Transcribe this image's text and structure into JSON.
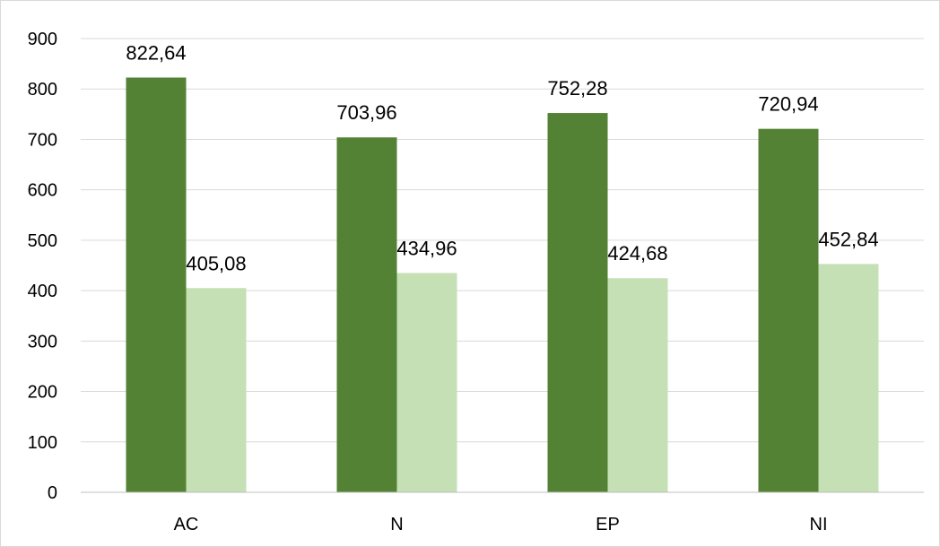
{
  "chart_data": {
    "type": "bar",
    "categories": [
      "AC",
      "N",
      "EP",
      "NI"
    ],
    "series": [
      {
        "values": [
          822.64,
          703.96,
          752.28,
          720.94
        ],
        "labels": [
          "822,64",
          "703,96",
          "752,28",
          "720,94"
        ],
        "color": "#548235"
      },
      {
        "values": [
          405.08,
          434.96,
          424.68,
          452.84
        ],
        "labels": [
          "405,08",
          "434,96",
          "424,68",
          "452,84"
        ],
        "color": "#c5e0b4"
      }
    ],
    "ylim": [
      0,
      900
    ],
    "yticks": [
      0,
      100,
      200,
      300,
      400,
      500,
      600,
      700,
      800,
      900
    ],
    "grid": true,
    "gridColor": "#d9d9d9",
    "legend": "none"
  }
}
